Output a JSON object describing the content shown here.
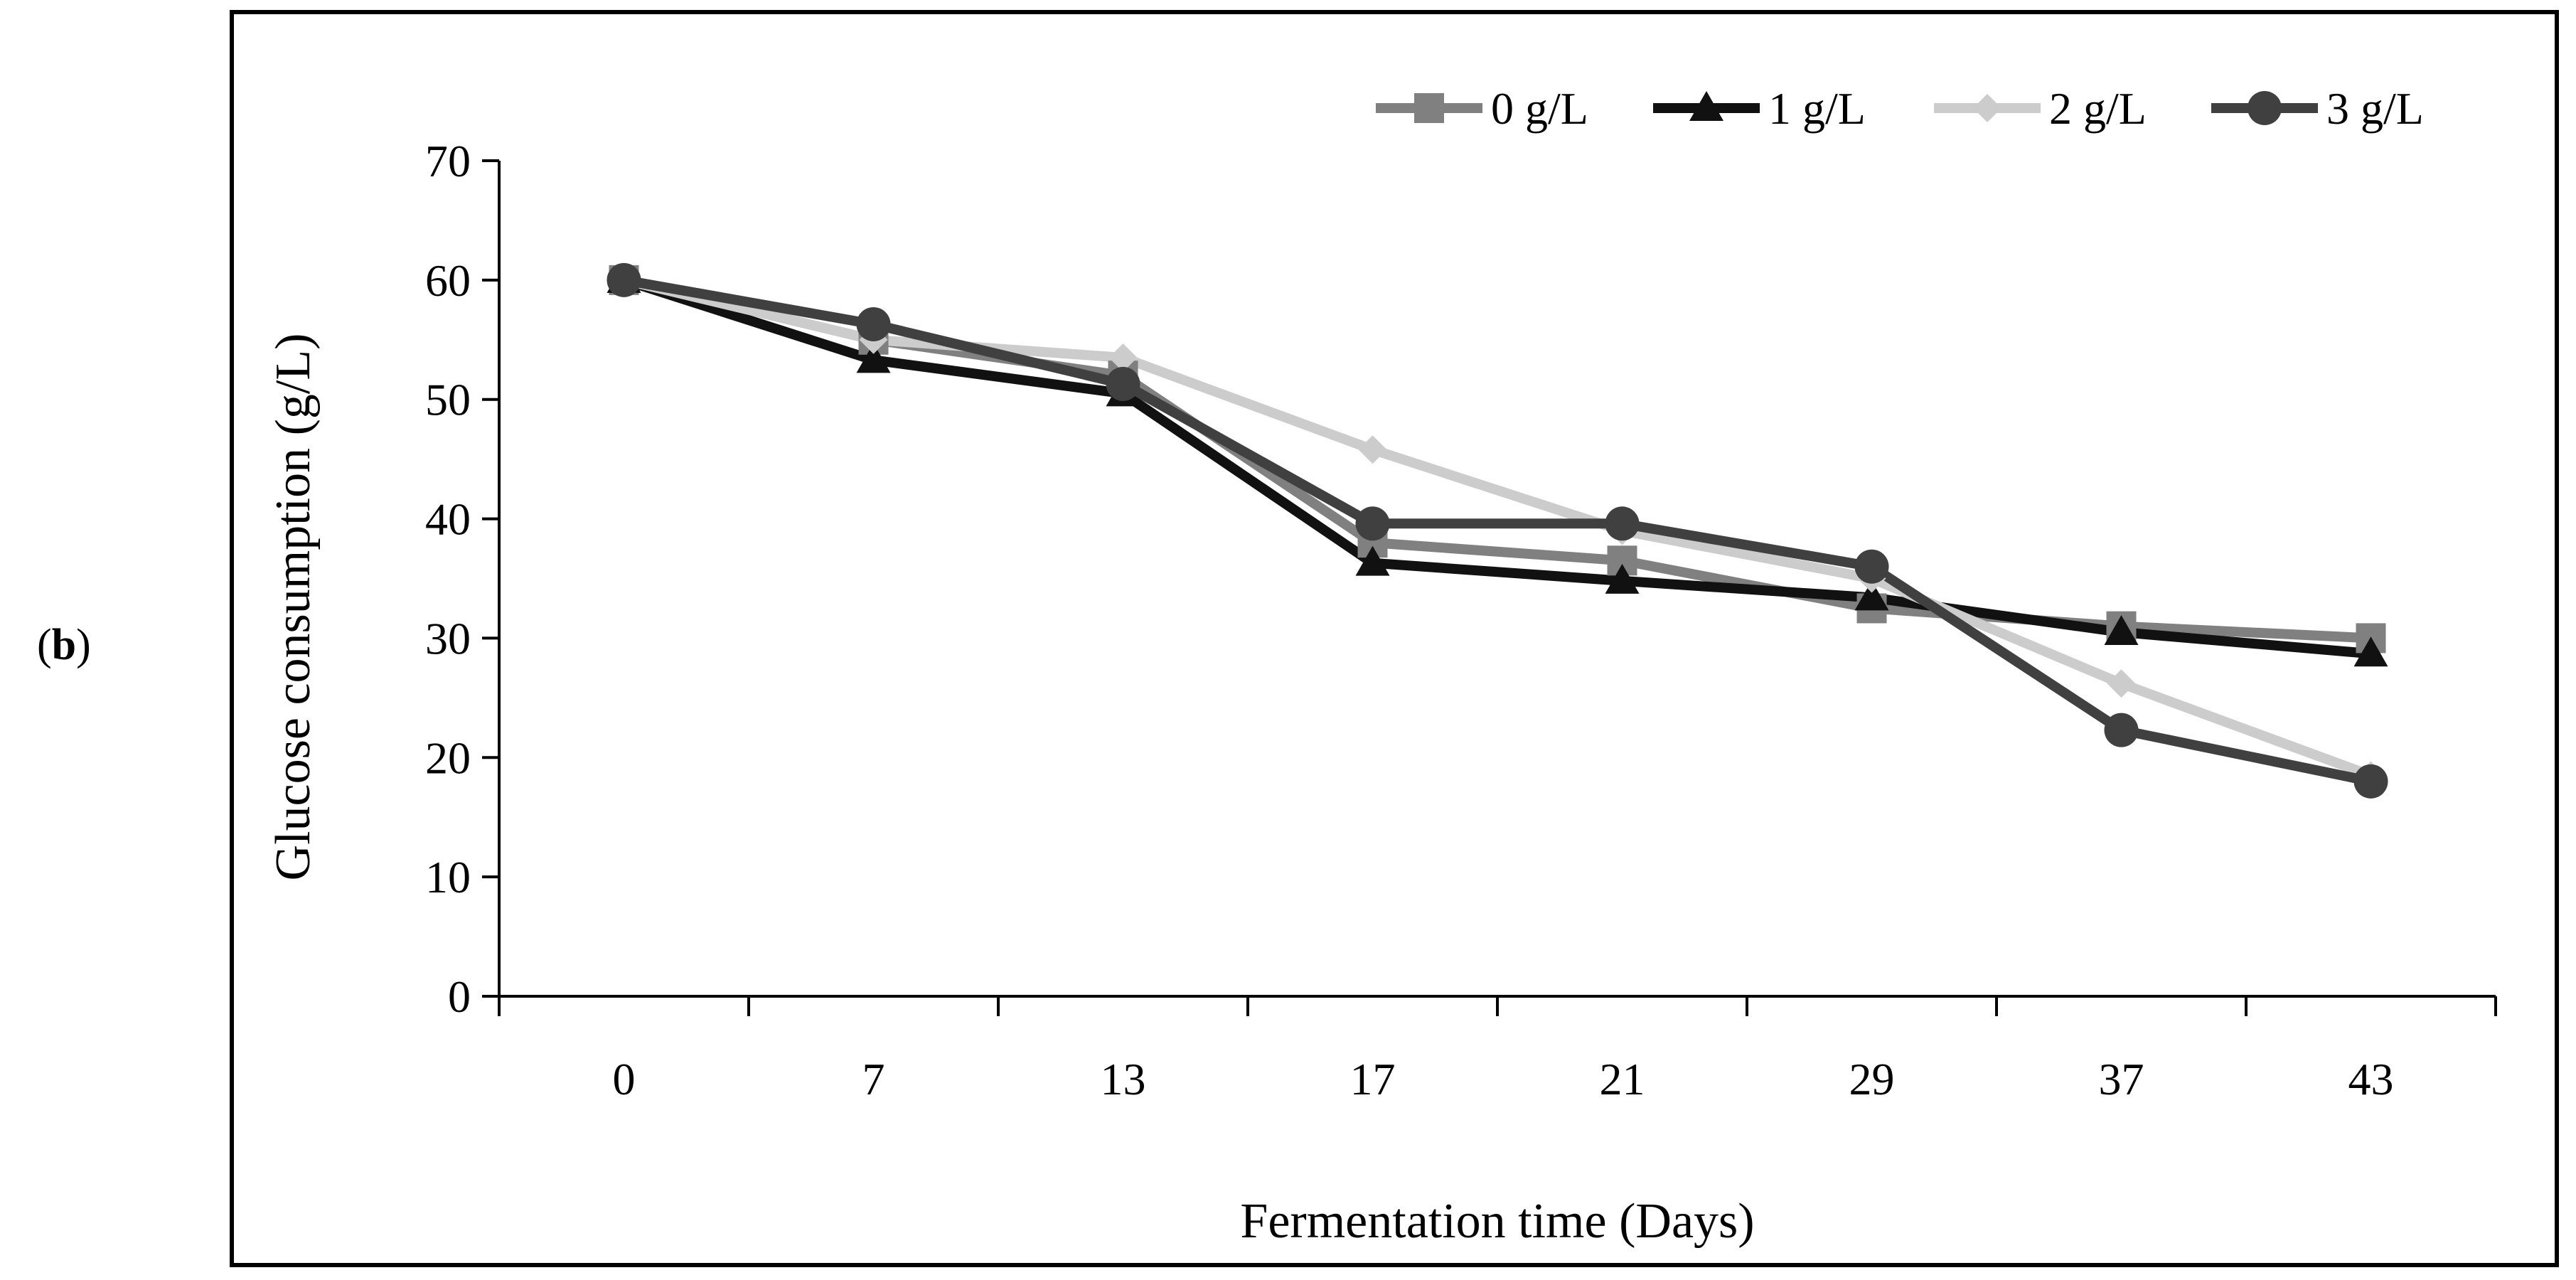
{
  "panel_label": {
    "open": "(",
    "letter": "b",
    "close": ")"
  },
  "chart_data": {
    "type": "line",
    "title": "",
    "xlabel": "Fermentation time (Days)",
    "ylabel": "Glucose consumption (g/L)",
    "categories": [
      "0",
      "7",
      "13",
      "17",
      "21",
      "29",
      "37",
      "43"
    ],
    "ylim": [
      0,
      70
    ],
    "yticks": [
      0,
      10,
      20,
      30,
      40,
      50,
      60,
      70
    ],
    "grid": false,
    "legend_position": "top-right",
    "series": [
      {
        "name": "0 g/L",
        "marker": "square",
        "color": "#808080",
        "values": [
          60.0,
          55.0,
          52.0,
          38.0,
          36.5,
          32.5,
          31.0,
          30.0
        ]
      },
      {
        "name": "1 g/L",
        "marker": "triangle",
        "color": "#111111",
        "values": [
          60.0,
          53.3,
          50.5,
          36.3,
          34.8,
          33.4,
          30.5,
          28.7
        ]
      },
      {
        "name": "2 g/L",
        "marker": "diamond",
        "color": "#cccccc",
        "values": [
          60.0,
          55.0,
          53.5,
          45.8,
          39.0,
          35.0,
          26.2,
          18.5
        ]
      },
      {
        "name": "3 g/L",
        "marker": "circle",
        "color": "#404040",
        "values": [
          60.0,
          56.3,
          51.3,
          39.6,
          39.6,
          36.0,
          22.3,
          18.0
        ]
      }
    ]
  }
}
